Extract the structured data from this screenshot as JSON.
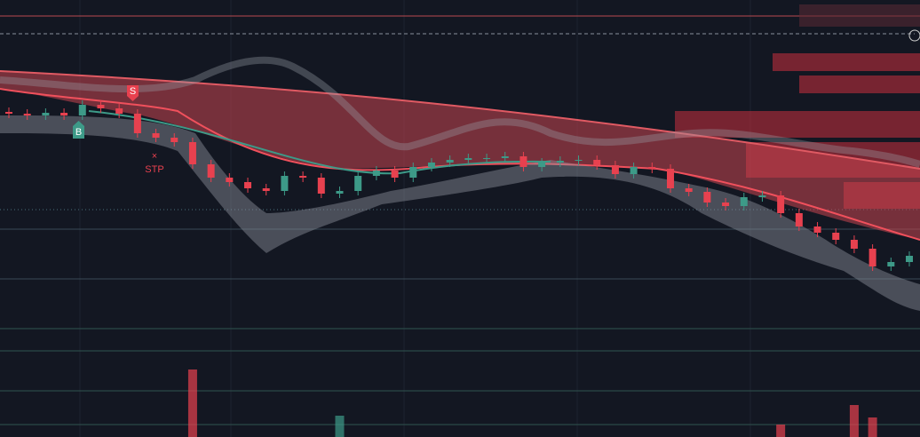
{
  "chart_data": {
    "type": "candlestick",
    "ylim": [
      0,
      492
    ],
    "up_color": "#3d9a88",
    "down_color": "#e8414f",
    "open": [
      366,
      364,
      362,
      365,
      362,
      374,
      370,
      364,
      342,
      337,
      332,
      307,
      292,
      287,
      280,
      277,
      294,
      292,
      274,
      277,
      294,
      300,
      292,
      304,
      309,
      312,
      314,
      314,
      316,
      304,
      309,
      311,
      312,
      306,
      296,
      304,
      302,
      280,
      276,
      264,
      260,
      270,
      272,
      252,
      237,
      230,
      222,
      212,
      192,
      197
    ],
    "high": [
      371,
      369,
      370,
      370,
      379,
      379,
      375,
      369,
      347,
      342,
      337,
      312,
      297,
      292,
      285,
      299,
      299,
      297,
      282,
      299,
      305,
      305,
      309,
      314,
      317,
      319,
      319,
      321,
      321,
      314,
      316,
      317,
      317,
      311,
      309,
      309,
      307,
      285,
      281,
      269,
      275,
      277,
      277,
      257,
      242,
      235,
      227,
      217,
      202,
      209
    ],
    "low": [
      359,
      357,
      357,
      357,
      357,
      365,
      359,
      337,
      332,
      327,
      302,
      287,
      282,
      275,
      272,
      272,
      287,
      269,
      269,
      272,
      289,
      287,
      287,
      299,
      304,
      307,
      309,
      309,
      299,
      299,
      304,
      306,
      301,
      291,
      291,
      297,
      275,
      271,
      259,
      255,
      255,
      265,
      247,
      232,
      225,
      217,
      207,
      187,
      187,
      192
    ],
    "close": [
      364,
      362,
      365,
      362,
      374,
      370,
      364,
      342,
      337,
      332,
      307,
      292,
      287,
      280,
      277,
      294,
      292,
      274,
      277,
      294,
      300,
      292,
      304,
      309,
      312,
      314,
      314,
      316,
      304,
      309,
      311,
      312,
      306,
      296,
      304,
      302,
      280,
      276,
      264,
      260,
      270,
      272,
      252,
      237,
      230,
      222,
      212,
      192,
      197,
      204
    ],
    "volume": [
      0,
      0,
      0,
      0,
      0,
      0,
      0,
      0,
      0,
      0,
      76,
      0,
      0,
      0,
      0,
      0,
      0,
      0,
      24,
      0,
      0,
      0,
      0,
      0,
      0,
      0,
      0,
      0,
      0,
      0,
      0,
      0,
      0,
      0,
      0,
      0,
      0,
      0,
      0,
      0,
      0,
      0,
      14,
      0,
      0,
      0,
      36,
      22,
      0,
      0
    ],
    "markers": [
      {
        "label": "S"
      },
      {
        "label": "B"
      },
      {
        "label": "STP"
      }
    ]
  }
}
